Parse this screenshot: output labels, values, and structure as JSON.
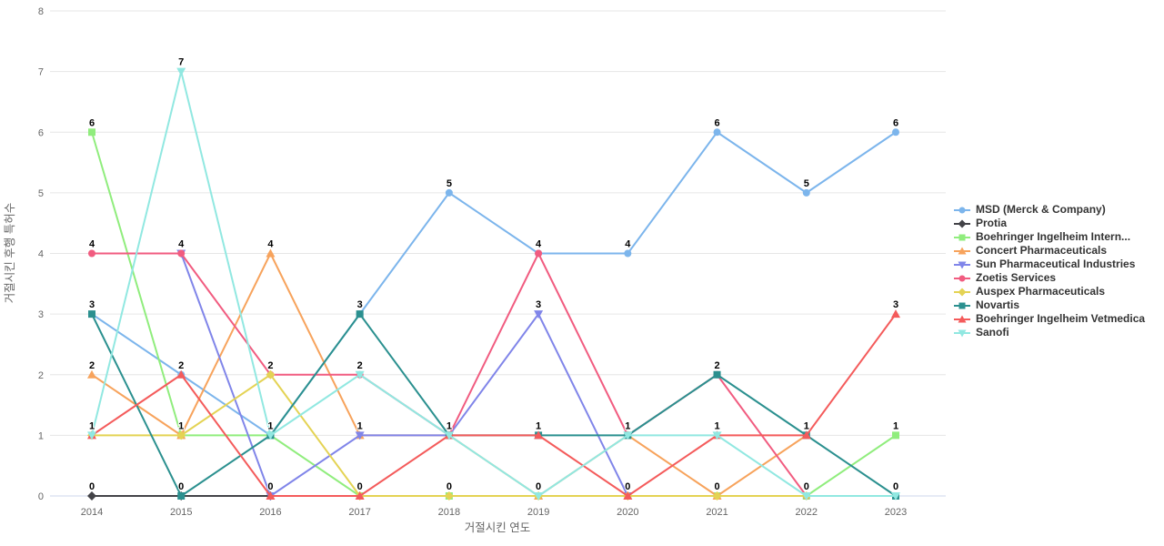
{
  "chart_data": {
    "type": "line",
    "title": "",
    "xlabel": "거절시킨 연도",
    "ylabel": "거절시킨 후행 특허수",
    "categories": [
      "2014",
      "2015",
      "2016",
      "2017",
      "2018",
      "2019",
      "2020",
      "2021",
      "2022",
      "2023"
    ],
    "yticks": [
      0,
      1,
      2,
      3,
      4,
      5,
      6,
      7,
      8
    ],
    "ylim": [
      0,
      8
    ],
    "grid": true,
    "legend_position": "right",
    "colors": {
      "grid_line": "#e6e6e6",
      "axis_line": "#ccd6eb",
      "tick_label": "#666666",
      "axis_title": "#666666",
      "legend_text": "#333333",
      "data_label": "#000000"
    },
    "series": [
      {
        "name": "MSD (Merck & Company)",
        "color": "#7cb5ec",
        "symbol": "circle",
        "values": [
          3,
          2,
          1,
          3,
          5,
          4,
          4,
          6,
          5,
          6
        ]
      },
      {
        "name": "Protia",
        "color": "#434348",
        "symbol": "diamond",
        "values": [
          0,
          0,
          0,
          null,
          null,
          null,
          null,
          null,
          null,
          null
        ]
      },
      {
        "name": "Boehringer Ingelheim Intern...",
        "color": "#90ed7d",
        "symbol": "square",
        "values": [
          6,
          1,
          1,
          0,
          0,
          0,
          0,
          0,
          0,
          1
        ]
      },
      {
        "name": "Concert Pharmaceuticals",
        "color": "#f7a35c",
        "symbol": "triangle",
        "values": [
          2,
          1,
          4,
          1,
          1,
          0,
          1,
          0,
          1,
          null
        ]
      },
      {
        "name": "Sun Pharmaceutical Industries",
        "color": "#8085e9",
        "symbol": "triangle-down",
        "values": [
          null,
          4,
          0,
          1,
          1,
          3,
          0,
          null,
          null,
          null
        ]
      },
      {
        "name": "Zoetis Services",
        "color": "#f15c80",
        "symbol": "circle",
        "values": [
          4,
          4,
          2,
          2,
          1,
          4,
          1,
          2,
          0,
          null
        ]
      },
      {
        "name": "Auspex Pharmaceuticals",
        "color": "#e4d354",
        "symbol": "diamond",
        "values": [
          1,
          1,
          2,
          0,
          0,
          0,
          0,
          0,
          0,
          null
        ]
      },
      {
        "name": "Novartis",
        "color": "#2b908f",
        "symbol": "square",
        "values": [
          3,
          0,
          1,
          3,
          1,
          1,
          1,
          2,
          1,
          0
        ]
      },
      {
        "name": "Boehringer Ingelheim Vetmedica",
        "color": "#f45b5b",
        "symbol": "triangle",
        "values": [
          1,
          2,
          0,
          0,
          1,
          1,
          0,
          1,
          1,
          3
        ]
      },
      {
        "name": "Sanofi",
        "color": "#91e8e1",
        "symbol": "triangle-down",
        "values": [
          1,
          7,
          1,
          2,
          1,
          0,
          1,
          1,
          0,
          0
        ]
      }
    ]
  }
}
